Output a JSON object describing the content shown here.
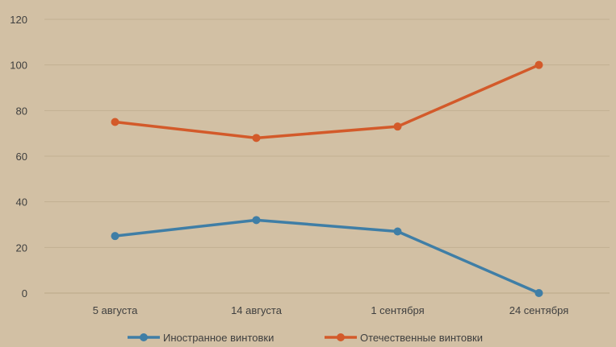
{
  "chart_data": {
    "type": "line",
    "title": "",
    "xlabel": "",
    "ylabel": "",
    "categories": [
      "5 августа",
      "14 августа",
      "1 сентября",
      "24 сентября"
    ],
    "ylim": [
      0,
      120
    ],
    "yticks": [
      0,
      20,
      40,
      60,
      80,
      100,
      120
    ],
    "grid": true,
    "legend_position": "bottom",
    "series": [
      {
        "name": "Иностранное винтовки",
        "color": "#3f7ea6",
        "values": [
          25,
          32,
          27,
          0
        ]
      },
      {
        "name": "Отечественные винтовки",
        "color": "#d35a2a",
        "values": [
          75,
          68,
          73,
          100
        ]
      }
    ]
  }
}
